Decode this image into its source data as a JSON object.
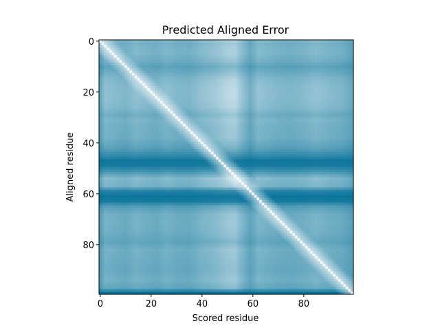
{
  "chart_data": {
    "type": "heatmap",
    "title": "Predicted Aligned Error",
    "xlabel": "Scored residue",
    "ylabel": "Aligned residue",
    "n_residues": 100,
    "xlim": [
      0,
      99
    ],
    "ylim": [
      99,
      0
    ],
    "x_ticks": [
      0,
      20,
      40,
      60,
      80
    ],
    "y_ticks": [
      0,
      20,
      40,
      60,
      80
    ],
    "colormap": [
      "#ffffff",
      "#006e96"
    ],
    "value_range": [
      0,
      1
    ],
    "row_error_profile": [
      {
        "residue": 0,
        "value": 0.22
      },
      {
        "residue": 1,
        "value": 0.3
      },
      {
        "residue": 2,
        "value": 0.26
      },
      {
        "residue": 5,
        "value": 0.24
      },
      {
        "residue": 8,
        "value": 0.34
      },
      {
        "residue": 10,
        "value": 0.44
      },
      {
        "residue": 12,
        "value": 0.36
      },
      {
        "residue": 15,
        "value": 0.22
      },
      {
        "residue": 18,
        "value": 0.17
      },
      {
        "residue": 22,
        "value": 0.16
      },
      {
        "residue": 26,
        "value": 0.2
      },
      {
        "residue": 29,
        "value": 0.33
      },
      {
        "residue": 31,
        "value": 0.26
      },
      {
        "residue": 34,
        "value": 0.3
      },
      {
        "residue": 38,
        "value": 0.31
      },
      {
        "residue": 42,
        "value": 0.46
      },
      {
        "residue": 45,
        "value": 0.7
      },
      {
        "residue": 47,
        "value": 0.9
      },
      {
        "residue": 49,
        "value": 0.86
      },
      {
        "residue": 51,
        "value": 0.62
      },
      {
        "residue": 54,
        "value": 0.2
      },
      {
        "residue": 57,
        "value": 0.28
      },
      {
        "residue": 59,
        "value": 0.78
      },
      {
        "residue": 61,
        "value": 0.92
      },
      {
        "residue": 63,
        "value": 0.86
      },
      {
        "residue": 65,
        "value": 0.5
      },
      {
        "residue": 68,
        "value": 0.32
      },
      {
        "residue": 72,
        "value": 0.3
      },
      {
        "residue": 76,
        "value": 0.34
      },
      {
        "residue": 79,
        "value": 0.42
      },
      {
        "residue": 82,
        "value": 0.3
      },
      {
        "residue": 86,
        "value": 0.33
      },
      {
        "residue": 90,
        "value": 0.36
      },
      {
        "residue": 94,
        "value": 0.3
      },
      {
        "residue": 97,
        "value": 0.4
      },
      {
        "residue": 99,
        "value": 0.95
      }
    ],
    "column_error_profile": [
      {
        "residue": 0,
        "value": 0.5
      },
      {
        "residue": 2,
        "value": 0.32
      },
      {
        "residue": 6,
        "value": 0.36
      },
      {
        "residue": 10,
        "value": 0.4
      },
      {
        "residue": 14,
        "value": 0.32
      },
      {
        "residue": 18,
        "value": 0.36
      },
      {
        "residue": 22,
        "value": 0.4
      },
      {
        "residue": 26,
        "value": 0.33
      },
      {
        "residue": 30,
        "value": 0.38
      },
      {
        "residue": 35,
        "value": 0.4
      },
      {
        "residue": 40,
        "value": 0.3
      },
      {
        "residue": 45,
        "value": 0.24
      },
      {
        "residue": 50,
        "value": 0.12
      },
      {
        "residue": 53,
        "value": 0.1
      },
      {
        "residue": 56,
        "value": 0.3
      },
      {
        "residue": 59,
        "value": 0.46
      },
      {
        "residue": 62,
        "value": 0.3
      },
      {
        "residue": 66,
        "value": 0.34
      },
      {
        "residue": 70,
        "value": 0.38
      },
      {
        "residue": 75,
        "value": 0.4
      },
      {
        "residue": 80,
        "value": 0.36
      },
      {
        "residue": 85,
        "value": 0.3
      },
      {
        "residue": 90,
        "value": 0.36
      },
      {
        "residue": 95,
        "value": 0.4
      },
      {
        "residue": 99,
        "value": 0.5
      }
    ]
  }
}
